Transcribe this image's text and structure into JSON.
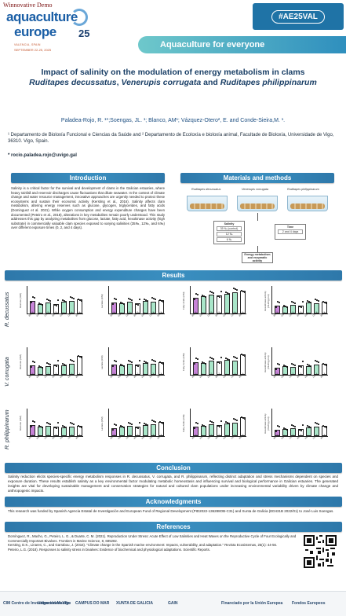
{
  "watermark": "Winnovative Demo",
  "brand": {
    "line1": "aquaculture",
    "line2": "europe",
    "year": "25",
    "subtitle": "VALENCIA, SPAIN",
    "dates": "SEPTEMBER 22-25, 2025"
  },
  "hashtag": "#AE25VAL",
  "tagline": "Aquaculture for everyone",
  "title": {
    "line1": "Impact of salinity on the modulation of energy metabolism in clams",
    "species1": "Ruditapes decussatus",
    "sep1": ", ",
    "species2": "Venerupis corrugata",
    "sep2": " and ",
    "species3": "Ruditapes philippinarum"
  },
  "authors": "Paladea-Rojo, R. ¹*;Soengas, JL. ¹; Blanco, AM¹; Vázquez-Otero², E. and Conde-Sieira,M. ¹.",
  "affiliations": "¹ Departamento de Bioloxía Funcional e Ciencias da Saúde and ² Departamento de Ecoloxía e bioloxía animal, Facultade de Bioloxía, Universidade de Vigo, 36310. Vigo, Spain.",
  "email": "* rocio.paladea.rojo@uvigo.gal",
  "sections": {
    "introduction": "Introduction",
    "materials": "Materials and methods",
    "results": "Results",
    "conclusion": "Conclusion",
    "acknowledgments": "Acknowledgments",
    "references": "References"
  },
  "introduction_text": "Salinity is a critical factor for the survival and development of clams in the Galician estuaries, where heavy rainfall and reservoir discharges cause fluctuations that dilute seawater. In the context of climate change and water resource management, innovative approaches are urgently needed to protect these ecosystems and sustain their economic activity (Kersting et al., 2016). Salinity affects clam metabolism, altering energy reserves such as glucose, glycogen, triglycerides, and fatty acids (Dominguez et al. 2021). While oxygen consumption and energy expenditure changes have been documented (Peteiro et al., 2018), alterations in key metabolites remain poorly understood. This study addresses this gap by analyzing metabolites from glucose, lactate, fatty acid, hexokinase activity (high substrate) in commercially valuable clam species exposed to varying salinities (35‰, 12‰, and 6‰) over different exposure times (0, 2, and 4 days).",
  "materials": {
    "species_labels": [
      "Ruditapes decussatus",
      "Venerupis corrugata",
      "Ruditapes philippinarum"
    ],
    "salinity_title": "Salinity",
    "salinity_values": [
      "35 ‰ (control)",
      "12 ‰",
      "6 ‰"
    ],
    "time_title": "Time",
    "time_values": [
      "2 and 4 days"
    ],
    "output_label": "Energy metabolism and enzymatic activity"
  },
  "results": {
    "species": [
      "R. decussatus",
      "V. corrugata",
      "R. philippinarum"
    ],
    "ylabels": [
      "Glucose (mM)",
      "Lactate (mM)",
      "Fatty Acids (mM)",
      "Hexokinase activity (mU/mg prot)"
    ],
    "xticks": [
      "35‰-0",
      "6‰-2",
      "12‰-2",
      "35‰-2",
      "6‰-4",
      "12‰-4",
      "35‰-4"
    ],
    "sig_marks": [
      "#",
      "*",
      "+"
    ]
  },
  "conclusion_text": "Salinity reduction elicits species-specific energy metabolism responses in R. decussatus, V. corrugata, and R. philippinarum, reflecting distinct adaptation and stress mechanisms dependent on species and exposure duration. These results establish salinity as a key environmental factor modulating metabolic homeostasis and influencing survival and biological performance in Galician estuaries. The generated insights are vital for developing sustainable management and conservation strategies for natural and cultured clam populations under increasing environmental variability driven by climate change and anthropogenic impacts.",
  "acknowledgments_text": "This research was funded by Spanish Agencia Estatal de Investigación and European Fund of Regional Development (PID2022-136288OB-C31) and Xunta de Galicia (ED431B 2022/01) to José Luis Soengas.",
  "references": [
    "Domínguez, R., Macho, G., Peteiro, L. G., & Duarte, C. M. (2021). Reproduction Under Stress: Acute Effect of Low Salinities and Heat Waves on the Reproductive Cycle of Four Ecologically and Commercially Important Bivalves. Frontiers in Marine Science, 8, 685282.",
    "Kersting, D.K., Linares, C., and Garrabou, J. (2016). \"Climate change in the Spanish marine environment: Impacts, vulnerability, and adaptation.\" Revista Ecosistemas, 25(1): 44-56.",
    "Peteiro, L.G. (2018). Responses to salinity stress in bivalves: Evidence of biochemical and physiological adaptations. Scientific Reports."
  ],
  "footer_logos": [
    "CIM Centro de Investigación Mariña",
    "UniversidadeVigo",
    "CAMPUS DO MAR",
    "XUNTA DE GALICIA",
    "GAIN",
    "Financiado por la Unión Europea",
    "Fondos Europeos"
  ],
  "colors": {
    "header_blue": "#2e78aa",
    "bar_purple": "#c784d8",
    "bar_mint": "#a9e6c9",
    "title_blue": "#1a3f66"
  }
}
